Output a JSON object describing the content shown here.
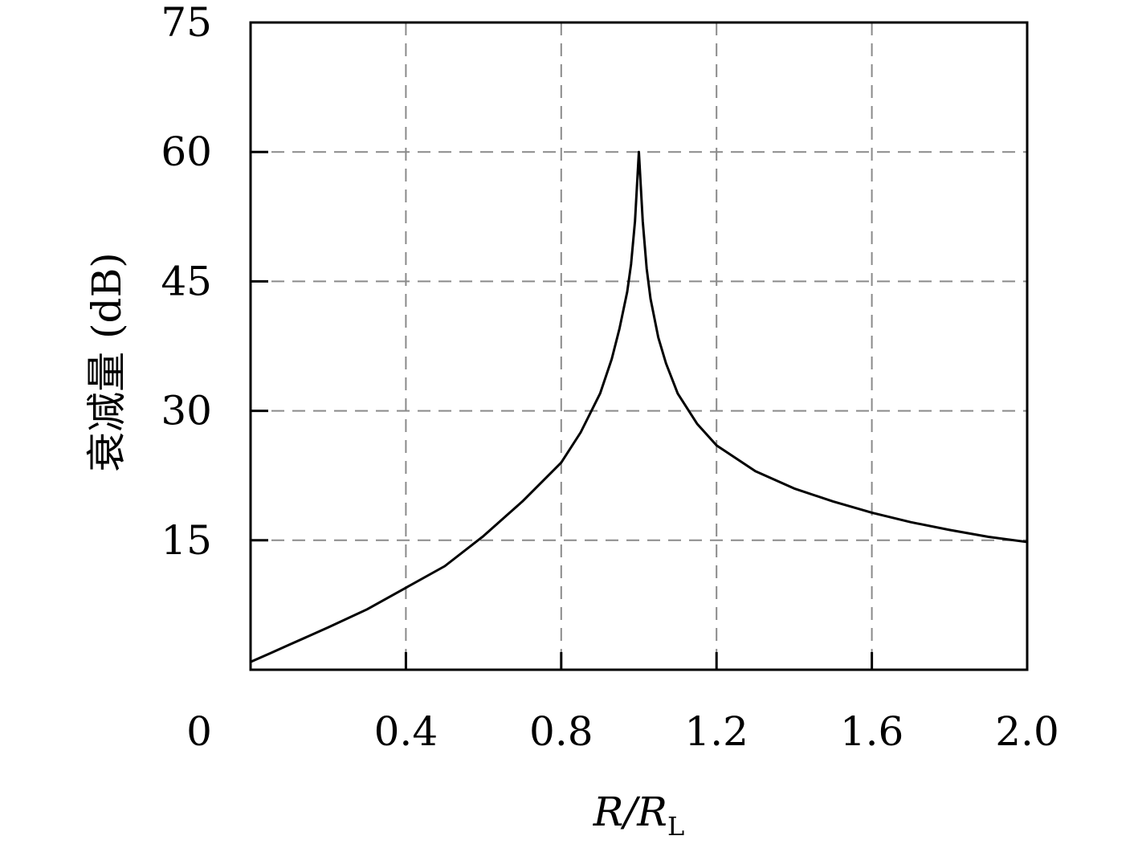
{
  "chart_data": {
    "type": "line",
    "title": "",
    "xlabel": {
      "main": "R/R",
      "subscript": "L"
    },
    "ylabel": "衰减量 (dB)",
    "xlim": [
      0,
      2.0
    ],
    "ylim": [
      0,
      75
    ],
    "x_ticks": [
      "0",
      "0.4",
      "0.8",
      "1.2",
      "1.6",
      "2.0"
    ],
    "x_tick_values": [
      0,
      0.4,
      0.8,
      1.2,
      1.6,
      2.0
    ],
    "y_ticks": [
      "15",
      "30",
      "45",
      "60",
      "75"
    ],
    "y_tick_values": [
      15,
      30,
      45,
      60,
      75
    ],
    "grid": true,
    "grid_style": "dashed",
    "series": [
      {
        "line_color": "#000000",
        "x": [
          0.0,
          0.05,
          0.1,
          0.2,
          0.3,
          0.4,
          0.5,
          0.6,
          0.7,
          0.8,
          0.85,
          0.9,
          0.93,
          0.95,
          0.97,
          0.98,
          0.99,
          0.995,
          1.0,
          1.005,
          1.01,
          1.02,
          1.03,
          1.05,
          1.07,
          1.1,
          1.15,
          1.2,
          1.3,
          1.4,
          1.5,
          1.6,
          1.7,
          1.8,
          1.9,
          2.0
        ],
        "y": [
          0.9,
          1.9,
          2.9,
          4.9,
          7.0,
          9.5,
          12.0,
          15.5,
          19.5,
          24.0,
          27.5,
          32.0,
          36.0,
          39.5,
          43.8,
          47.0,
          52.0,
          56.0,
          60.0,
          56.0,
          52.0,
          46.5,
          43.0,
          38.5,
          35.5,
          32.0,
          28.5,
          26.0,
          23.0,
          21.0,
          19.5,
          18.2,
          17.1,
          16.2,
          15.4,
          14.8
        ]
      }
    ]
  }
}
